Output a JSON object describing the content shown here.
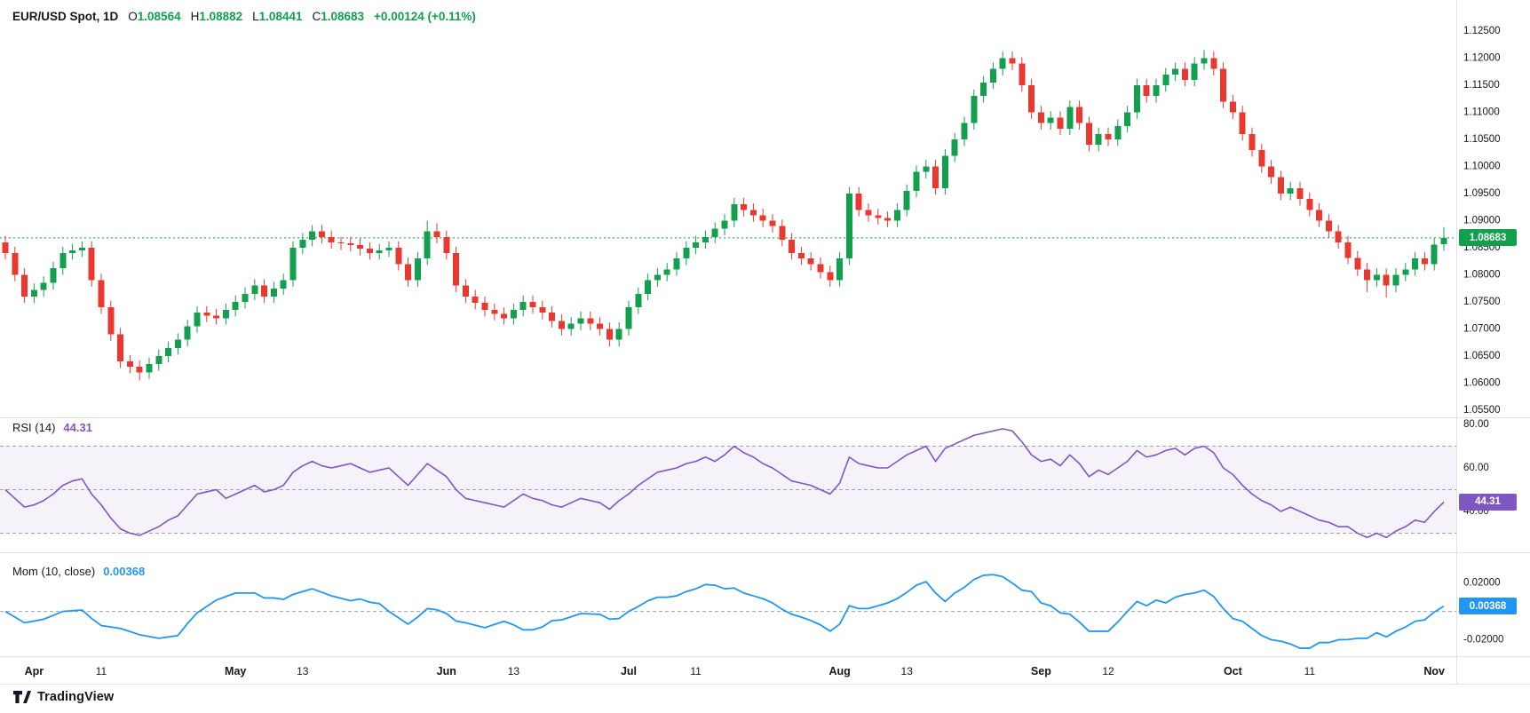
{
  "header": {
    "title": "EUR/USD Spot, 1D",
    "o_key": "O",
    "o_val": "1.08564",
    "h_key": "H",
    "h_val": "1.08882",
    "l_key": "L",
    "l_val": "1.08441",
    "c_key": "C",
    "c_val": "1.08683",
    "change": "+0.00124 (+0.11%)"
  },
  "panes": {
    "rsi": {
      "label": "RSI (14)",
      "value": "44.31"
    },
    "mom": {
      "label": "Mom (10, close)",
      "value": "0.00368"
    }
  },
  "badges": {
    "price": "1.08683",
    "rsi": "44.31",
    "mom": "0.00368"
  },
  "footer": {
    "brand": "TradingView"
  },
  "colors": {
    "up": "#12a04e",
    "down": "#e8382f",
    "rsi": "#7e57c2",
    "rsi_band": "rgba(126,87,194,0.08)",
    "mom": "#2196f3",
    "text": "#131722",
    "grid_dash": "#a0a3ad",
    "separator": "#e0e3eb"
  },
  "xaxis": {
    "labels": [
      {
        "text": "Apr",
        "index": 3,
        "major": true
      },
      {
        "text": "11",
        "index": 10,
        "major": false
      },
      {
        "text": "May",
        "index": 24,
        "major": true
      },
      {
        "text": "13",
        "index": 31,
        "major": false
      },
      {
        "text": "Jun",
        "index": 46,
        "major": true
      },
      {
        "text": "13",
        "index": 53,
        "major": false
      },
      {
        "text": "Jul",
        "index": 65,
        "major": true
      },
      {
        "text": "11",
        "index": 72,
        "major": false
      },
      {
        "text": "Aug",
        "index": 87,
        "major": true
      },
      {
        "text": "13",
        "index": 94,
        "major": false
      },
      {
        "text": "Sep",
        "index": 108,
        "major": true
      },
      {
        "text": "12",
        "index": 115,
        "major": false
      },
      {
        "text": "Oct",
        "index": 128,
        "major": true
      },
      {
        "text": "11",
        "index": 136,
        "major": false
      },
      {
        "text": "Nov",
        "index": 149,
        "major": true
      }
    ]
  },
  "chart_data": [
    {
      "type": "candlestick",
      "title": "EUR/USD Spot, 1D",
      "symbol": "EUR/USD Spot",
      "interval": "1D",
      "open": 1.08564,
      "high": 1.08882,
      "low": 1.08441,
      "close": 1.08683,
      "change_text": "+0.00124 (+0.11%)",
      "ylim": [
        1.055,
        1.125
      ],
      "ytick_labels": [
        "1.12500",
        "1.12000",
        "1.11500",
        "1.11000",
        "1.10500",
        "1.10000",
        "1.09500",
        "1.09000",
        "1.08500",
        "1.08000",
        "1.07500",
        "1.07000",
        "1.06500",
        "1.06000",
        "1.05500"
      ],
      "last_price_line": 1.08683,
      "candles": [
        [
          1.086,
          1.0872,
          1.0828,
          1.084
        ],
        [
          1.084,
          1.0852,
          1.0788,
          1.08
        ],
        [
          1.08,
          1.0812,
          1.0748,
          1.076
        ],
        [
          1.076,
          1.0784,
          1.0748,
          1.0772
        ],
        [
          1.0772,
          1.0797,
          1.076,
          1.0785
        ],
        [
          1.0785,
          1.0824,
          1.0773,
          1.0812
        ],
        [
          1.0812,
          1.0852,
          1.08,
          1.084
        ],
        [
          1.084,
          1.0857,
          1.0828,
          1.0845
        ],
        [
          1.0845,
          1.0862,
          1.0833,
          1.085
        ],
        [
          1.085,
          1.0862,
          1.0778,
          1.079
        ],
        [
          1.079,
          1.0802,
          1.0728,
          1.074
        ],
        [
          1.074,
          1.0752,
          1.0678,
          1.069
        ],
        [
          1.069,
          1.0702,
          1.0628,
          1.064
        ],
        [
          1.064,
          1.0652,
          1.0618,
          1.063
        ],
        [
          1.063,
          1.0642,
          1.0605,
          1.062
        ],
        [
          1.062,
          1.0647,
          1.0608,
          1.0635
        ],
        [
          1.0635,
          1.0662,
          1.0623,
          1.065
        ],
        [
          1.065,
          1.0677,
          1.0638,
          1.0665
        ],
        [
          1.0665,
          1.0692,
          1.0653,
          1.068
        ],
        [
          1.068,
          1.0717,
          1.0668,
          1.0705
        ],
        [
          1.0705,
          1.0742,
          1.0693,
          1.073
        ],
        [
          1.073,
          1.0742,
          1.0713,
          1.0725
        ],
        [
          1.0725,
          1.0737,
          1.0708,
          1.072
        ],
        [
          1.072,
          1.0747,
          1.0708,
          1.0735
        ],
        [
          1.0735,
          1.0762,
          1.0723,
          1.075
        ],
        [
          1.075,
          1.0777,
          1.0738,
          1.0765
        ],
        [
          1.0765,
          1.0792,
          1.0753,
          1.078
        ],
        [
          1.078,
          1.0792,
          1.0748,
          1.076
        ],
        [
          1.076,
          1.0787,
          1.0748,
          1.0775
        ],
        [
          1.0775,
          1.0802,
          1.0763,
          1.079
        ],
        [
          1.079,
          1.0862,
          1.0778,
          1.085
        ],
        [
          1.085,
          1.0877,
          1.0838,
          1.0865
        ],
        [
          1.0865,
          1.0892,
          1.0853,
          1.088
        ],
        [
          1.088,
          1.0892,
          1.0858,
          1.087
        ],
        [
          1.087,
          1.0882,
          1.0848,
          1.086
        ],
        [
          1.086,
          1.087,
          1.0846,
          1.0858
        ],
        [
          1.0858,
          1.087,
          1.0843,
          1.0855
        ],
        [
          1.0855,
          1.0867,
          1.0836,
          1.0848
        ],
        [
          1.0848,
          1.086,
          1.0828,
          1.084
        ],
        [
          1.084,
          1.0857,
          1.0828,
          1.0845
        ],
        [
          1.0845,
          1.0862,
          1.0833,
          1.085
        ],
        [
          1.085,
          1.0862,
          1.0808,
          1.082
        ],
        [
          1.082,
          1.0832,
          1.0778,
          1.079
        ],
        [
          1.079,
          1.0842,
          1.0778,
          1.083
        ],
        [
          1.083,
          1.09,
          1.0818,
          1.088
        ],
        [
          1.088,
          1.0895,
          1.0858,
          1.087
        ],
        [
          1.087,
          1.0882,
          1.0828,
          1.084
        ],
        [
          1.084,
          1.0852,
          1.0768,
          1.078
        ],
        [
          1.078,
          1.0792,
          1.0748,
          1.076
        ],
        [
          1.076,
          1.0772,
          1.0736,
          1.0748
        ],
        [
          1.0748,
          1.076,
          1.0723,
          1.0735
        ],
        [
          1.0735,
          1.0747,
          1.0716,
          1.0728
        ],
        [
          1.0728,
          1.074,
          1.0708,
          1.072
        ],
        [
          1.072,
          1.0747,
          1.0708,
          1.0735
        ],
        [
          1.0735,
          1.0762,
          1.0723,
          1.075
        ],
        [
          1.075,
          1.0762,
          1.0728,
          1.074
        ],
        [
          1.074,
          1.0752,
          1.0718,
          1.073
        ],
        [
          1.073,
          1.0742,
          1.0703,
          1.0715
        ],
        [
          1.0715,
          1.0727,
          1.0688,
          1.07
        ],
        [
          1.07,
          1.0722,
          1.0688,
          1.071
        ],
        [
          1.071,
          1.0732,
          1.0698,
          1.072
        ],
        [
          1.072,
          1.0732,
          1.0698,
          1.071
        ],
        [
          1.071,
          1.0722,
          1.0688,
          1.07
        ],
        [
          1.07,
          1.0712,
          1.0668,
          1.068
        ],
        [
          1.068,
          1.0712,
          1.0668,
          1.07
        ],
        [
          1.07,
          1.0752,
          1.0688,
          1.074
        ],
        [
          1.074,
          1.0777,
          1.0728,
          1.0765
        ],
        [
          1.0765,
          1.0802,
          1.0753,
          1.079
        ],
        [
          1.079,
          1.0812,
          1.0778,
          1.08
        ],
        [
          1.08,
          1.0822,
          1.0788,
          1.081
        ],
        [
          1.081,
          1.0842,
          1.0798,
          1.083
        ],
        [
          1.083,
          1.0862,
          1.0818,
          1.085
        ],
        [
          1.085,
          1.0872,
          1.0838,
          1.086
        ],
        [
          1.086,
          1.0882,
          1.0848,
          1.087
        ],
        [
          1.087,
          1.0897,
          1.0858,
          1.0885
        ],
        [
          1.0885,
          1.0912,
          1.0873,
          1.09
        ],
        [
          1.09,
          1.0942,
          1.0888,
          1.093
        ],
        [
          1.093,
          1.0942,
          1.0908,
          1.092
        ],
        [
          1.092,
          1.0932,
          1.0898,
          1.091
        ],
        [
          1.091,
          1.0922,
          1.0888,
          1.09
        ],
        [
          1.09,
          1.0912,
          1.0878,
          1.089
        ],
        [
          1.089,
          1.0902,
          1.0853,
          1.0865
        ],
        [
          1.0865,
          1.0877,
          1.0828,
          1.084
        ],
        [
          1.084,
          1.0852,
          1.0818,
          1.083
        ],
        [
          1.083,
          1.0842,
          1.0808,
          1.082
        ],
        [
          1.082,
          1.0832,
          1.0793,
          1.0805
        ],
        [
          1.0805,
          1.0817,
          1.0778,
          1.079
        ],
        [
          1.079,
          1.0842,
          1.0778,
          1.083
        ],
        [
          1.083,
          1.0962,
          1.0818,
          1.095
        ],
        [
          1.095,
          1.0962,
          1.0908,
          1.092
        ],
        [
          1.092,
          1.0932,
          1.0898,
          1.091
        ],
        [
          1.091,
          1.0922,
          1.0893,
          1.0905
        ],
        [
          1.0905,
          1.0917,
          1.0888,
          1.09
        ],
        [
          1.09,
          1.0932,
          1.0888,
          1.092
        ],
        [
          1.092,
          1.0967,
          1.0908,
          1.0955
        ],
        [
          1.0955,
          1.1002,
          1.0943,
          1.099
        ],
        [
          1.099,
          1.1012,
          1.0978,
          1.1
        ],
        [
          1.1,
          1.1012,
          1.0948,
          1.096
        ],
        [
          1.096,
          1.1032,
          1.0948,
          1.102
        ],
        [
          1.102,
          1.1062,
          1.1008,
          1.105
        ],
        [
          1.105,
          1.1092,
          1.1038,
          1.108
        ],
        [
          1.108,
          1.1142,
          1.1068,
          1.113
        ],
        [
          1.113,
          1.1167,
          1.1118,
          1.1155
        ],
        [
          1.1155,
          1.1192,
          1.1143,
          1.118
        ],
        [
          1.118,
          1.1212,
          1.1168,
          1.12
        ],
        [
          1.12,
          1.1212,
          1.1178,
          1.119
        ],
        [
          1.119,
          1.1202,
          1.1138,
          1.115
        ],
        [
          1.115,
          1.1162,
          1.1088,
          1.11
        ],
        [
          1.11,
          1.1112,
          1.1068,
          1.108
        ],
        [
          1.108,
          1.1102,
          1.1068,
          1.109
        ],
        [
          1.109,
          1.1102,
          1.1058,
          1.107
        ],
        [
          1.107,
          1.1122,
          1.1058,
          1.111
        ],
        [
          1.111,
          1.1122,
          1.1068,
          1.108
        ],
        [
          1.108,
          1.1092,
          1.1028,
          1.104
        ],
        [
          1.104,
          1.1072,
          1.1028,
          1.106
        ],
        [
          1.106,
          1.1072,
          1.1038,
          1.105
        ],
        [
          1.105,
          1.1087,
          1.1038,
          1.1075
        ],
        [
          1.1075,
          1.1112,
          1.1063,
          1.11
        ],
        [
          1.11,
          1.1162,
          1.1088,
          1.115
        ],
        [
          1.115,
          1.1162,
          1.1118,
          1.113
        ],
        [
          1.113,
          1.1162,
          1.1118,
          1.115
        ],
        [
          1.115,
          1.1182,
          1.1138,
          1.117
        ],
        [
          1.117,
          1.1192,
          1.1158,
          1.118
        ],
        [
          1.118,
          1.1192,
          1.1148,
          1.116
        ],
        [
          1.116,
          1.1202,
          1.1148,
          1.119
        ],
        [
          1.119,
          1.1215,
          1.1178,
          1.12
        ],
        [
          1.12,
          1.1212,
          1.1168,
          1.118
        ],
        [
          1.118,
          1.1192,
          1.1108,
          1.112
        ],
        [
          1.112,
          1.1132,
          1.1088,
          1.11
        ],
        [
          1.11,
          1.1112,
          1.1048,
          1.106
        ],
        [
          1.106,
          1.1072,
          1.1018,
          1.103
        ],
        [
          1.103,
          1.1042,
          1.0988,
          1.1
        ],
        [
          1.1,
          1.1012,
          1.0968,
          1.098
        ],
        [
          1.098,
          1.0992,
          1.0938,
          1.095
        ],
        [
          1.095,
          1.0972,
          1.0938,
          1.096
        ],
        [
          1.096,
          1.0972,
          1.0928,
          1.094
        ],
        [
          1.094,
          1.0952,
          1.0908,
          1.092
        ],
        [
          1.092,
          1.0932,
          1.0888,
          1.09
        ],
        [
          1.09,
          1.0912,
          1.0868,
          1.088
        ],
        [
          1.088,
          1.0892,
          1.0848,
          1.086
        ],
        [
          1.086,
          1.0872,
          1.082,
          1.08315
        ],
        [
          1.08315,
          1.0844,
          1.0798,
          1.081
        ],
        [
          1.081,
          1.0822,
          1.0768,
          1.079
        ],
        [
          1.079,
          1.0812,
          1.0778,
          1.08
        ],
        [
          1.08,
          1.0812,
          1.0758,
          1.078
        ],
        [
          1.078,
          1.0812,
          1.0768,
          1.08
        ],
        [
          1.08,
          1.0822,
          1.0788,
          1.081
        ],
        [
          1.081,
          1.0842,
          1.0798,
          1.083
        ],
        [
          1.083,
          1.0842,
          1.0808,
          1.082
        ],
        [
          1.082,
          1.0868,
          1.0808,
          1.0856
        ],
        [
          1.08564,
          1.08882,
          1.08441,
          1.08683
        ]
      ]
    },
    {
      "type": "line",
      "name": "RSI (14)",
      "current": 44.31,
      "band": [
        30,
        70
      ],
      "midline": 50,
      "ytick_labels": [
        "80.00",
        "60.00",
        "40.00"
      ],
      "values": [
        50,
        46,
        42,
        43,
        45,
        48,
        52,
        54,
        55,
        48,
        43,
        37,
        32,
        30,
        29,
        31,
        33,
        36,
        38,
        43,
        48,
        49,
        50,
        46,
        48,
        50,
        52,
        49,
        50,
        52,
        58,
        61,
        63,
        61,
        60,
        61,
        62,
        60,
        58,
        59,
        60,
        56,
        52,
        57,
        62,
        59,
        56,
        50,
        46,
        45,
        44,
        43,
        42,
        45,
        48,
        46,
        45,
        43,
        42,
        44,
        46,
        45,
        44,
        41,
        45,
        48,
        52,
        55,
        58,
        59,
        60,
        62,
        63,
        65,
        63,
        66,
        70,
        67,
        65,
        62,
        60,
        57,
        54,
        53,
        52,
        50,
        48,
        53,
        65,
        62,
        61,
        60,
        60,
        63,
        66,
        68,
        70,
        63,
        69,
        71,
        73,
        75,
        76,
        77,
        78,
        77,
        72,
        66,
        63,
        64,
        61,
        66,
        62,
        56,
        59,
        57,
        60,
        63,
        68,
        65,
        66,
        68,
        69,
        66,
        69,
        70,
        67,
        60,
        57,
        52,
        48,
        45,
        43,
        40,
        42,
        40,
        38,
        36,
        35,
        33,
        33,
        30,
        28,
        30,
        28,
        31,
        33,
        36,
        35,
        40,
        44.31
      ]
    },
    {
      "type": "line",
      "name": "Mom (10, close)",
      "current": 0.00368,
      "derivation": "close[i] - close[i-10] of the candle series",
      "ytick_labels": [
        "0.02000",
        "-0.02000"
      ],
      "zero_line": 0
    }
  ]
}
